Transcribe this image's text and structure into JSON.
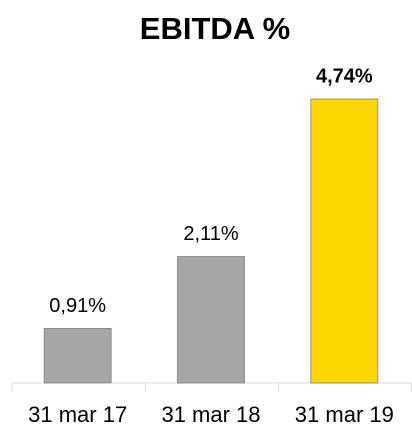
{
  "chart_data": {
    "type": "bar",
    "title": "EBITDA %",
    "categories": [
      "31 mar 17",
      "31 mar 18",
      "31 mar 19"
    ],
    "values": [
      0.91,
      2.11,
      4.74
    ],
    "value_labels": [
      "0,91%",
      "2,11%",
      "4,74%"
    ],
    "colors": [
      "#a6a6a6",
      "#a6a6a6",
      "#ffd700"
    ],
    "label_bold": [
      false,
      false,
      true
    ]
  }
}
